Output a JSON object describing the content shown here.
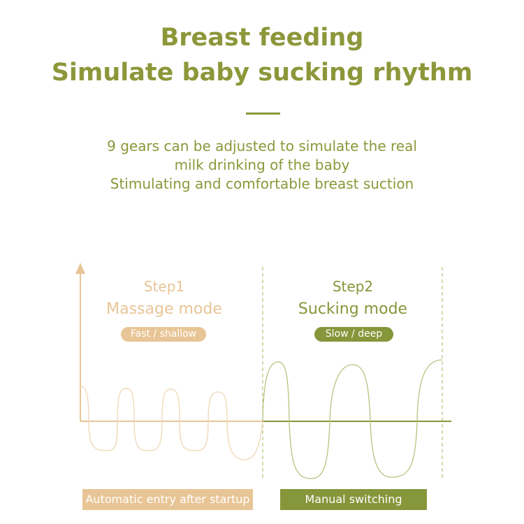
{
  "header": {
    "title_line1": "Breast feeding",
    "title_line2": "Simulate baby sucking rhythm"
  },
  "description": [
    "9 gears can be adjusted to simulate the real",
    "milk drinking of the baby",
    "Stimulating and comfortable breast suction"
  ],
  "steps": [
    {
      "step": "Step1",
      "mode": "Massage mode",
      "badge": "Fast / shallow",
      "footer": "Automatic entry after startup",
      "color": "#e8c596"
    },
    {
      "step": "Step2",
      "mode": "Sucking mode",
      "badge": "Slow / deep",
      "footer": "Manual switching",
      "color": "#86963a"
    }
  ]
}
